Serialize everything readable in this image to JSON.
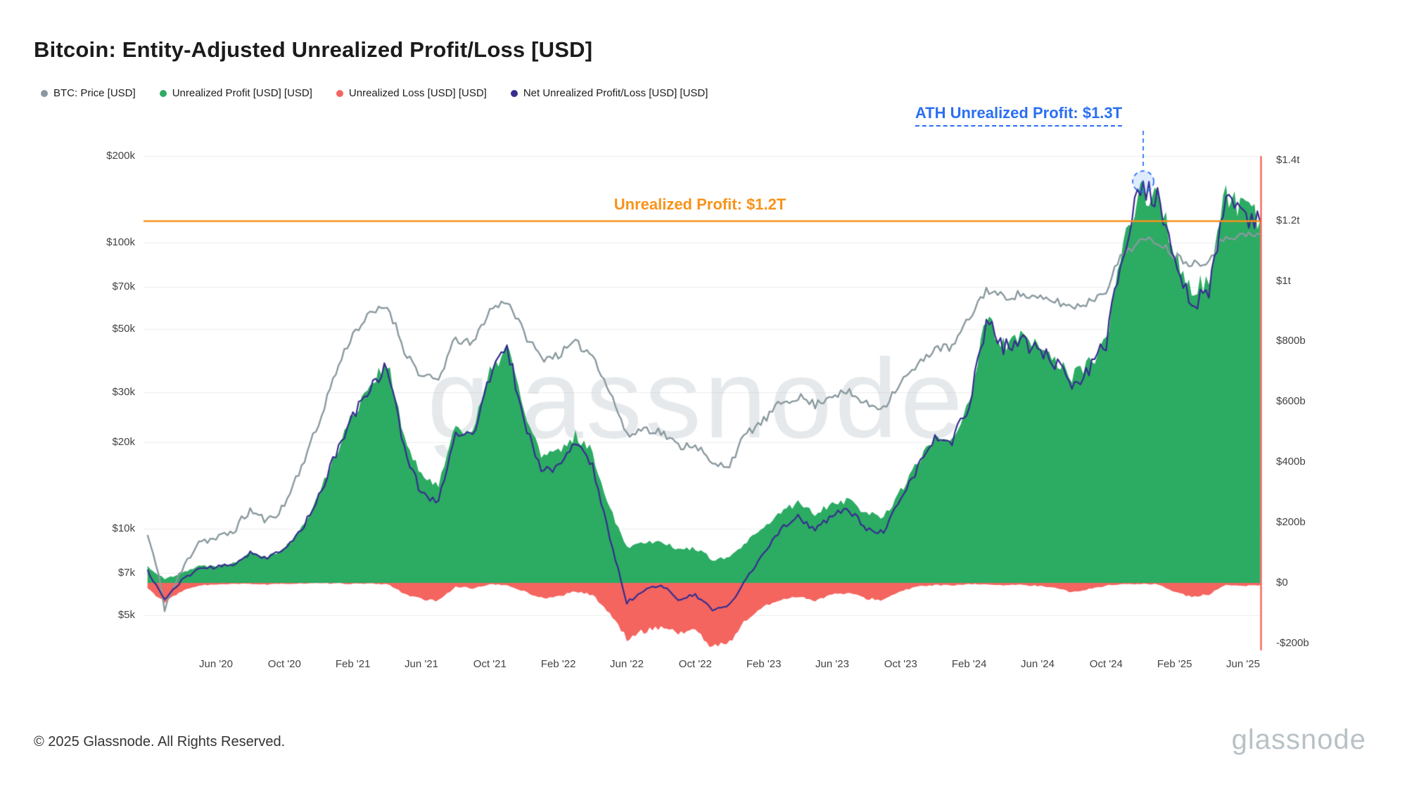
{
  "page": {
    "title": "Bitcoin: Entity-Adjusted Unrealized Profit/Loss [USD]",
    "footer_copyright": "© 2025 Glassnode. All Rights Reserved.",
    "brand_logo": "glassnode",
    "watermark": "glassnode"
  },
  "legend": {
    "items": [
      {
        "label": "BTC: Price [USD]",
        "color": "#8a999f"
      },
      {
        "label": "Unrealized Profit [USD] [USD]",
        "color": "#2cab63"
      },
      {
        "label": "Unrealized Loss [USD] [USD]",
        "color": "#f4655f"
      },
      {
        "label": "Net Unrealized Profit/Loss [USD] [USD]",
        "color": "#372d8f"
      }
    ]
  },
  "annotations": {
    "ath_label": "ATH Unrealized Profit: $1.3T",
    "ath_value_billions": 1310,
    "ath_month": "2024-12",
    "hline_label": "Unrealized Profit: $1.2T",
    "hline_value_billions": 1200,
    "colors": {
      "ath": "#2b6ff2",
      "ath_fill": "rgba(59,130,246,0.16)",
      "hline": "#f7931a",
      "current_marker": "#f5493d"
    }
  },
  "chart_data": {
    "type": "area",
    "title": "Bitcoin: Entity-Adjusted Unrealized Profit/Loss [USD]",
    "start_month": "2020-02",
    "interval": "monthly",
    "left_scale": "log",
    "right_scale": "linear",
    "grid": "horizontal",
    "legend_position": "top-left",
    "left_axis": {
      "unit": "USD price",
      "range": [
        4000,
        200000
      ],
      "ticks": [
        {
          "label": "$200k",
          "value": 200000
        },
        {
          "label": "$100k",
          "value": 100000
        },
        {
          "label": "$70k",
          "value": 70000
        },
        {
          "label": "$50k",
          "value": 50000
        },
        {
          "label": "$30k",
          "value": 30000
        },
        {
          "label": "$20k",
          "value": 20000
        },
        {
          "label": "$10k",
          "value": 10000
        },
        {
          "label": "$7k",
          "value": 7000
        },
        {
          "label": "$5k",
          "value": 5000
        }
      ]
    },
    "right_axis": {
      "unit": "billions USD",
      "range": [
        -200,
        1400
      ],
      "ticks": [
        {
          "label": "$1.4t",
          "value": 1400
        },
        {
          "label": "$1.2t",
          "value": 1200
        },
        {
          "label": "$1t",
          "value": 1000
        },
        {
          "label": "$800b",
          "value": 800
        },
        {
          "label": "$600b",
          "value": 600
        },
        {
          "label": "$400b",
          "value": 400
        },
        {
          "label": "$200b",
          "value": 200
        },
        {
          "label": "$0",
          "value": 0
        },
        {
          "label": "-$200b",
          "value": -200
        }
      ]
    },
    "x_ticks": [
      {
        "label": "Jun '20",
        "month": "2020-06"
      },
      {
        "label": "Oct '20",
        "month": "2020-10"
      },
      {
        "label": "Feb '21",
        "month": "2021-02"
      },
      {
        "label": "Jun '21",
        "month": "2021-06"
      },
      {
        "label": "Oct '21",
        "month": "2021-10"
      },
      {
        "label": "Feb '22",
        "month": "2022-02"
      },
      {
        "label": "Jun '22",
        "month": "2022-06"
      },
      {
        "label": "Oct '22",
        "month": "2022-10"
      },
      {
        "label": "Feb '23",
        "month": "2023-02"
      },
      {
        "label": "Jun '23",
        "month": "2023-06"
      },
      {
        "label": "Oct '23",
        "month": "2023-10"
      },
      {
        "label": "Feb '24",
        "month": "2024-02"
      },
      {
        "label": "Jun '24",
        "month": "2024-06"
      },
      {
        "label": "Oct '24",
        "month": "2024-10"
      },
      {
        "label": "Feb '25",
        "month": "2025-02"
      },
      {
        "label": "Jun '25",
        "month": "2025-06"
      }
    ],
    "series": [
      {
        "key": "price",
        "name": "BTC: Price [USD]",
        "type": "line",
        "axis": "left",
        "color": "#8a999f",
        "values": [
          9500,
          5300,
          7100,
          9100,
          9200,
          9800,
          11600,
          10600,
          12000,
          16500,
          23000,
          35000,
          48000,
          56000,
          60000,
          42000,
          34000,
          33000,
          46000,
          44000,
          58000,
          63000,
          48000,
          39500,
          40500,
          44500,
          40500,
          30000,
          21000,
          22500,
          21800,
          19400,
          19800,
          16600,
          16800,
          21500,
          23800,
          27500,
          29000,
          27100,
          29500,
          29800,
          27200,
          26600,
          32500,
          37000,
          43000,
          42800,
          54000,
          68500,
          64500,
          66000,
          63500,
          62500,
          59500,
          62000,
          68500,
          92000,
          101000,
          101500,
          90000,
          84500,
          87000,
          106000,
          105500,
          107000
        ]
      },
      {
        "key": "profit",
        "name": "Unrealized Profit [USD] [USD]",
        "type": "area",
        "axis": "right",
        "color": "#2cab63",
        "values": [
          55,
          12,
          35,
          55,
          58,
          65,
          105,
          88,
          115,
          180,
          290,
          430,
          560,
          660,
          730,
          480,
          350,
          330,
          520,
          500,
          690,
          790,
          570,
          420,
          430,
          490,
          430,
          250,
          120,
          135,
          140,
          110,
          115,
          78,
          82,
          135,
          180,
          235,
          265,
          230,
          265,
          275,
          230,
          220,
          305,
          395,
          485,
          475,
          600,
          870,
          790,
          810,
          780,
          745,
          680,
          725,
          805,
          1110,
          1305,
          1280,
          1090,
          970,
          1000,
          1285,
          1230,
          1200
        ]
      },
      {
        "key": "loss",
        "name": "Unrealized Loss [USD] [USD]",
        "type": "area",
        "axis": "right",
        "color": "#f4655f",
        "values": [
          -18,
          -65,
          -28,
          -8,
          -6,
          -4,
          -3,
          -6,
          -3,
          -2,
          -2,
          -2,
          -3,
          -3,
          -4,
          -35,
          -55,
          -60,
          -12,
          -18,
          -5,
          -8,
          -28,
          -50,
          -45,
          -28,
          -40,
          -100,
          -185,
          -160,
          -145,
          -165,
          -155,
          -215,
          -195,
          -120,
          -80,
          -55,
          -45,
          -58,
          -38,
          -34,
          -52,
          -56,
          -28,
          -12,
          -7,
          -9,
          -5,
          -4,
          -8,
          -7,
          -10,
          -14,
          -32,
          -20,
          -9,
          -4,
          -4,
          -5,
          -28,
          -48,
          -38,
          -8,
          -10,
          -8
        ]
      },
      {
        "key": "net",
        "name": "Net Unrealized Profit/Loss [USD] [USD]",
        "type": "line",
        "axis": "right",
        "color": "#372d8f",
        "values": [
          40,
          -55,
          8,
          48,
          52,
          60,
          100,
          82,
          110,
          176,
          286,
          425,
          550,
          650,
          720,
          445,
          295,
          270,
          505,
          480,
          685,
          780,
          540,
          370,
          385,
          460,
          390,
          150,
          -65,
          -25,
          -5,
          -55,
          -40,
          -90,
          -75,
          15,
          100,
          180,
          220,
          172,
          227,
          241,
          178,
          164,
          277,
          383,
          478,
          466,
          595,
          866,
          782,
          803,
          770,
          731,
          648,
          705,
          796,
          1106,
          1310,
          1275,
          1062,
          922,
          962,
          1277,
          1220,
          1195
        ]
      }
    ]
  }
}
